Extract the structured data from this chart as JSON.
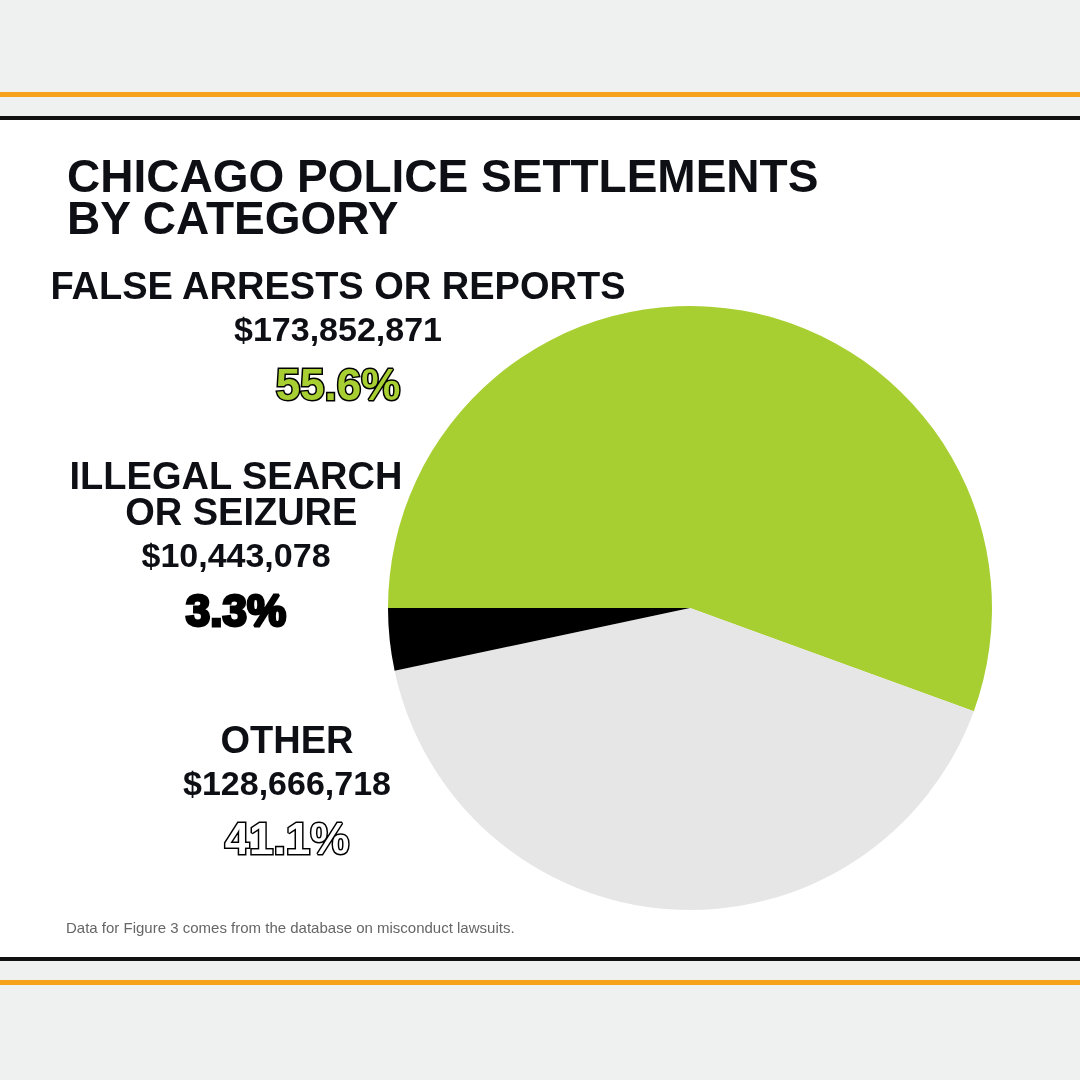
{
  "chart_data": {
    "type": "pie",
    "title": "CHICAGO POLICE SETTLEMENTS\nBY CATEGORY",
    "categories": [
      "FALSE ARRESTS OR REPORTS",
      "OTHER",
      "ILLEGAL SEARCH OR SEIZURE"
    ],
    "values": [
      173852871,
      128666718,
      10443078
    ],
    "value_labels": [
      "$173,852,871\n55.6%",
      "$128,666,718\n41.1%",
      "$10,443,078\n3.3%"
    ],
    "colors": [
      "#a8cf32",
      "#e6e6e6",
      "#000000"
    ],
    "legend": false,
    "annotations": [
      "Data for Figure 3 comes from the database on misconduct lawsuits."
    ]
  }
}
